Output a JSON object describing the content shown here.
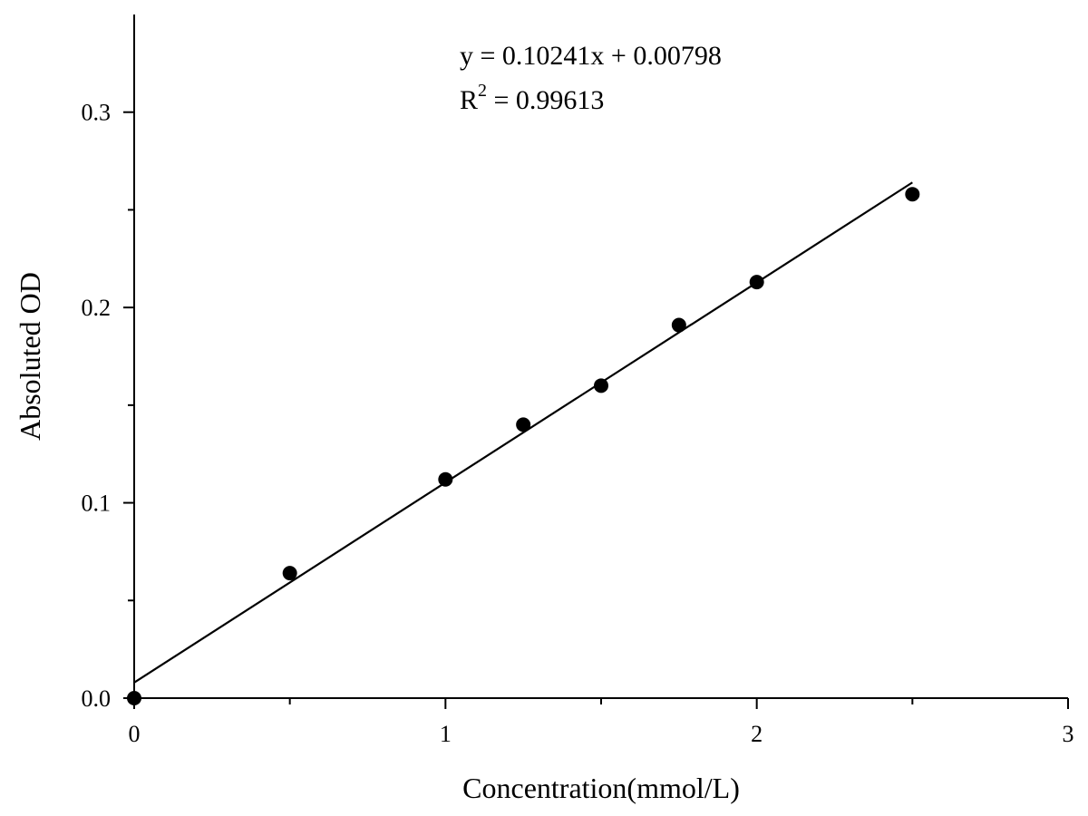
{
  "chart_data": {
    "type": "scatter",
    "title": "",
    "xlabel": "Concentration(mmol/L)",
    "ylabel": "Absoluted OD",
    "xlim": [
      0,
      3
    ],
    "ylim": [
      0,
      0.35
    ],
    "x_ticks": [
      0,
      1,
      2,
      3
    ],
    "x_tick_labels": [
      "0",
      "1",
      "2",
      "3"
    ],
    "x_minor_ticks": [
      0.5,
      1.5,
      2.5
    ],
    "y_ticks": [
      0.0,
      0.1,
      0.2,
      0.3
    ],
    "y_tick_labels": [
      "0.0",
      "0.1",
      "0.2",
      "0.3"
    ],
    "y_minor_ticks": [
      0.05,
      0.15,
      0.25
    ],
    "grid": false,
    "series": [
      {
        "x": [
          0,
          0.5,
          1.0,
          1.25,
          1.5,
          1.75,
          2.0,
          2.5
        ],
        "y": [
          0.0,
          0.064,
          0.112,
          0.14,
          0.16,
          0.191,
          0.213,
          0.258
        ]
      }
    ],
    "fit_line": {
      "slope": 0.10241,
      "intercept": 0.00798,
      "x_range": [
        0,
        2.5
      ]
    },
    "annotations": {
      "equation": "y = 0.10241x + 0.00798",
      "r_squared_prefix": "R",
      "r_squared_superscript": "2",
      "r_squared_value": " = 0.99613"
    },
    "colors": {
      "marker": "#000000",
      "line": "#000000"
    }
  }
}
